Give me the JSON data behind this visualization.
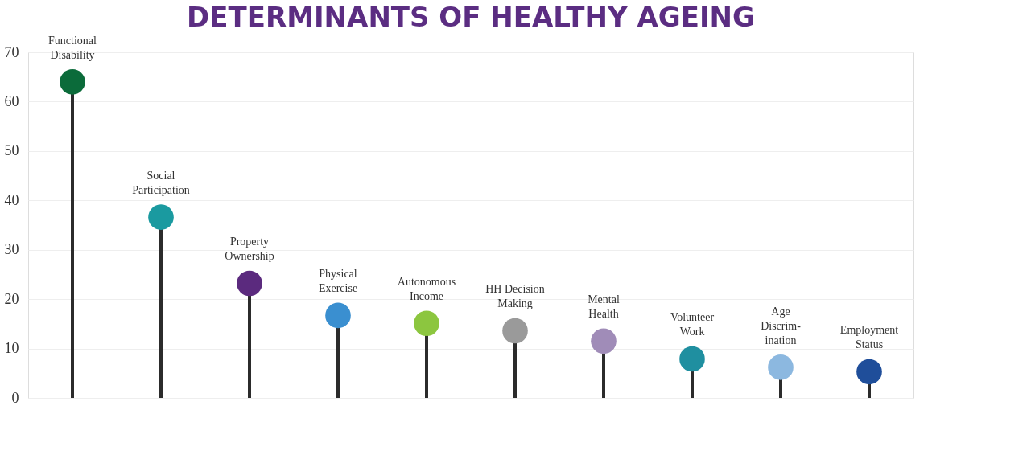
{
  "chart_data": {
    "type": "lollipop",
    "title": "DETERMINANTS OF HEALTHY AGEING",
    "categories": [
      "Functional\nDisability",
      "Social\nParticipation",
      "Property\nOwnership",
      "Physical\nExercise",
      "Autonomous\nIncome",
      "HH Decision\nMaking",
      "Mental\nHealth",
      "Volunteer\nWork",
      "Age\nDiscrim-\nination",
      "Employment\nStatus"
    ],
    "values": [
      64,
      36.6,
      23.2,
      16.7,
      15.1,
      13.6,
      11.5,
      7.9,
      6.2,
      5.3
    ],
    "colors": [
      "#0b6b3a",
      "#1a9aa0",
      "#5b2a7e",
      "#3a8fd0",
      "#8cc63f",
      "#9a9a9a",
      "#a08cb8",
      "#1f8fa0",
      "#8cb8e0",
      "#1f4e9a"
    ],
    "ylim": [
      0,
      70
    ],
    "yticks": [
      0,
      10,
      20,
      30,
      40,
      50,
      60,
      70
    ],
    "grid": "y",
    "marker": "circle"
  }
}
